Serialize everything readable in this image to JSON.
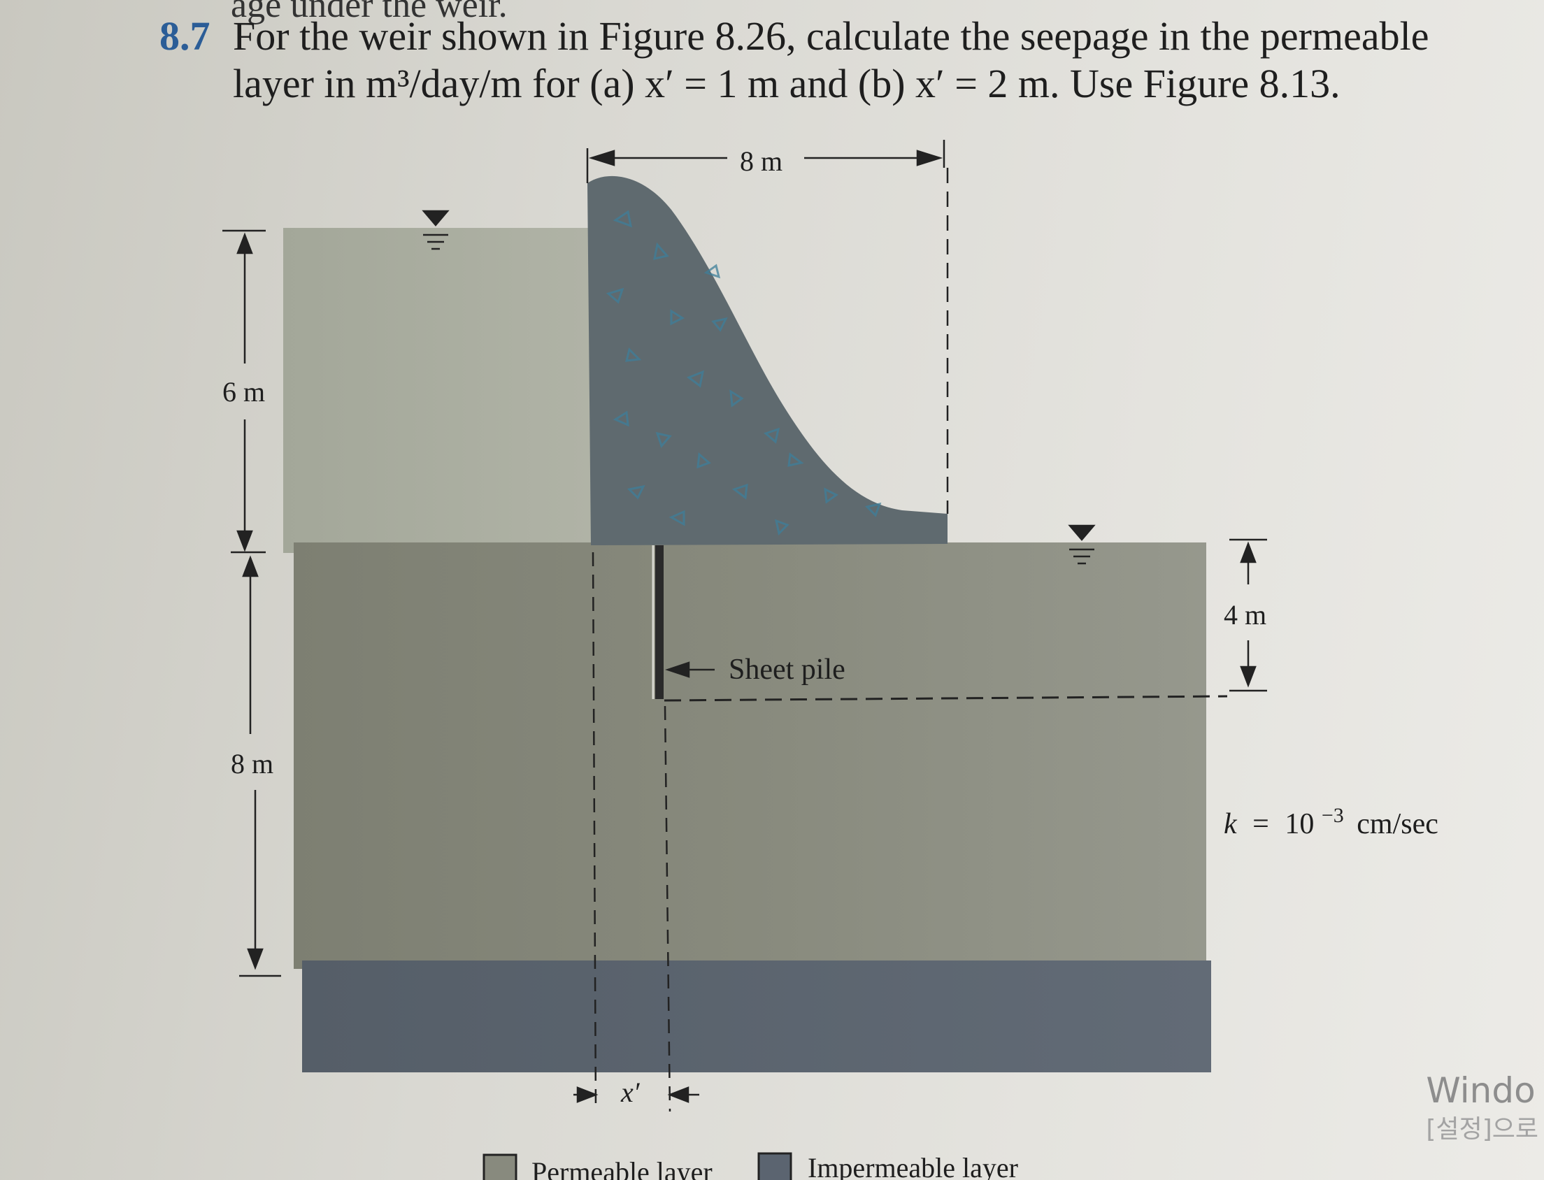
{
  "problem": {
    "cut_text": "age under the weir.",
    "number": "8.7",
    "line1": "For the weir shown in Figure 8.26, calculate the seepage in the permeable",
    "line2": "layer in m³/day/m for (a) x′ = 1 m and (b) x′ = 2 m. Use Figure 8.13."
  },
  "figure": {
    "dims": {
      "top_width": "8 m",
      "upstream_water_depth": "6 m",
      "permeable_layer_depth": "8 m",
      "sheet_pile_depth": "4 m",
      "offset": "x′"
    },
    "labels": {
      "sheet_pile": "Sheet pile",
      "permeability_k": "k",
      "permeability_eq": "=",
      "permeability_base": "10",
      "permeability_exp": "−3",
      "permeability_unit": "cm/sec"
    },
    "legend": [
      {
        "label": "Permeable layer",
        "color": "#888a7e"
      },
      {
        "label": "Impermeable layer",
        "color": "#5b6470"
      }
    ],
    "colors": {
      "water": "#a9ad9f",
      "permeable": "#888a7e",
      "impermeable": "#5c6570",
      "weir": "#606b70",
      "accent": "#2b5d97"
    }
  },
  "watermark": {
    "line1": "Windo",
    "line2": "[설정]으로"
  }
}
